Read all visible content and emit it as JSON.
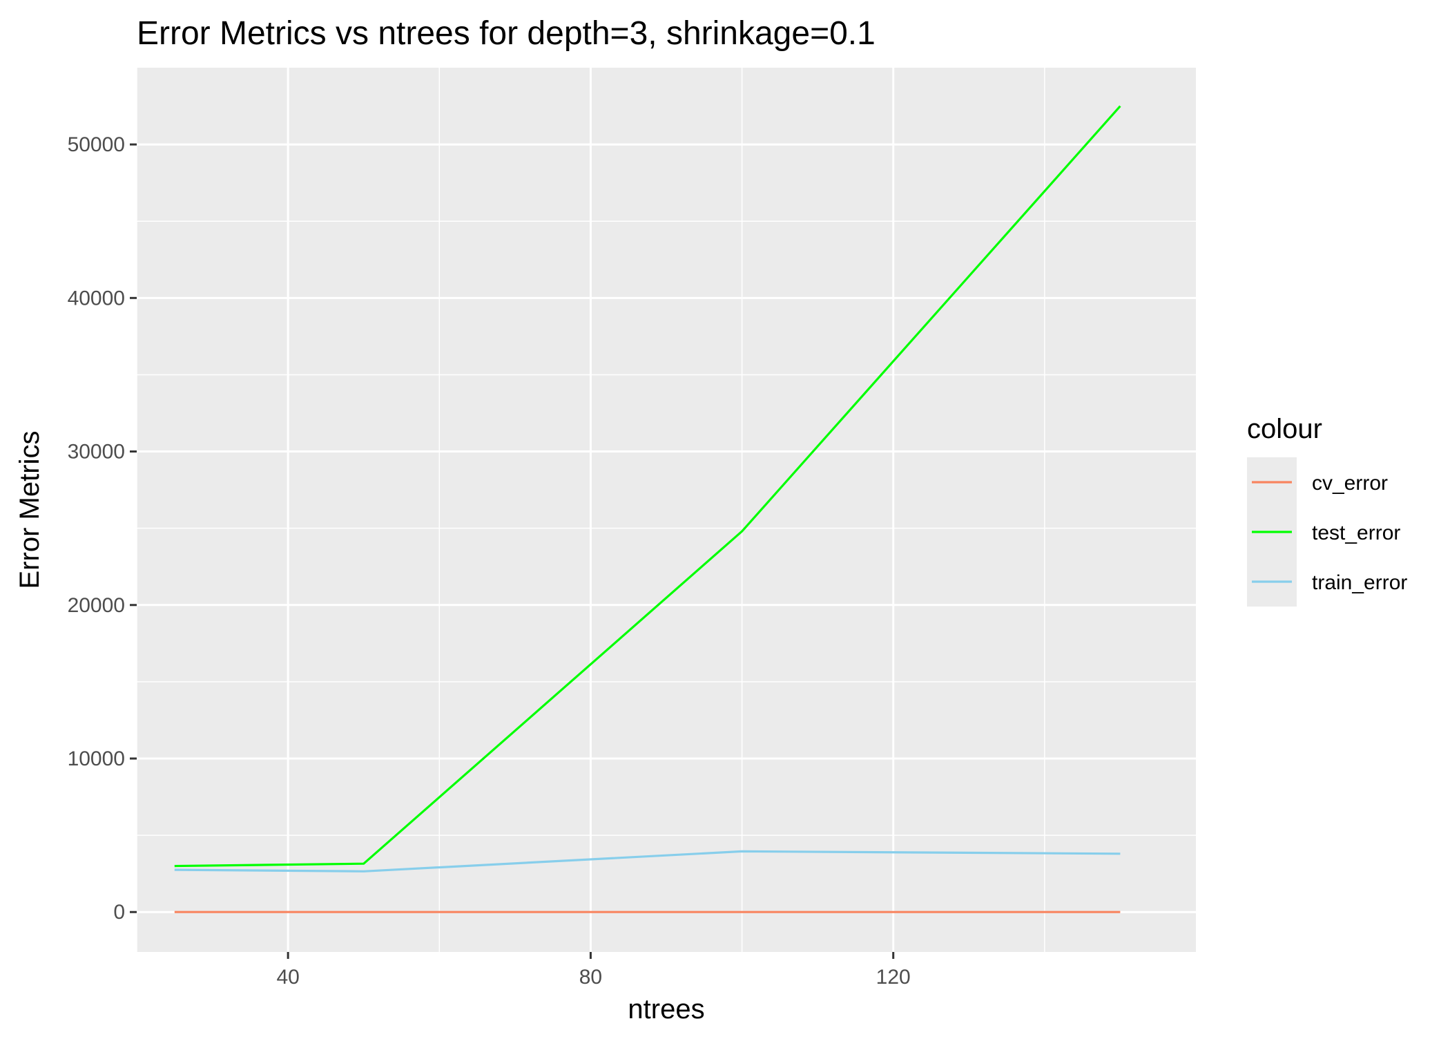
{
  "chart_data": {
    "type": "line",
    "title": "Error Metrics vs ntrees for depth=3, shrinkage=0.1",
    "xlabel": "ntrees",
    "ylabel": "Error Metrics",
    "xlim": [
      20,
      160
    ],
    "ylim": [
      -2600,
      55000
    ],
    "x_ticks": [
      40,
      80,
      120
    ],
    "x_minor_ticks": [
      20,
      60,
      100,
      140
    ],
    "y_ticks": [
      0,
      10000,
      20000,
      30000,
      40000,
      50000
    ],
    "y_minor_ticks": [
      5000,
      15000,
      25000,
      35000,
      45000
    ],
    "grid": true,
    "legend": {
      "title": "colour",
      "position": "right"
    },
    "panel_background": "#EBEBEB",
    "grid_color": "#FFFFFF",
    "x": [
      25,
      50,
      100,
      150
    ],
    "series": [
      {
        "name": "cv_error",
        "color": "#F8845F",
        "values": [
          0,
          0,
          0,
          0
        ]
      },
      {
        "name": "test_error",
        "color": "#00FF00",
        "values": [
          3000,
          3150,
          24800,
          52500
        ]
      },
      {
        "name": "train_error",
        "color": "#87CEEB",
        "values": [
          2750,
          2650,
          3950,
          3800
        ]
      }
    ]
  }
}
